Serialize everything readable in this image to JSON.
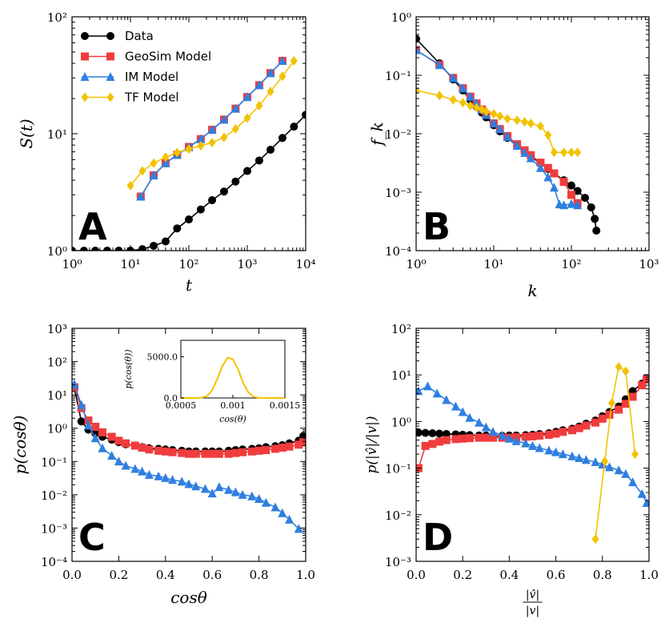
{
  "colors": {
    "data": "#000000",
    "geosim": "#f03c3c",
    "im": "#2f7fe0",
    "tf": "#f2c200"
  },
  "chart_data": [
    {
      "id": "A",
      "type": "line",
      "panel_label": "A",
      "xscale": "log",
      "yscale": "log",
      "xlim": [
        1,
        10000
      ],
      "ylim": [
        1,
        100
      ],
      "xlabel": "t",
      "ylabel": "S(t)",
      "xticks": [
        1,
        10,
        100,
        1000,
        10000
      ],
      "xtick_labels": [
        "10⁰",
        "10¹",
        "10²",
        "10³",
        "10⁴"
      ],
      "yticks": [
        1,
        10,
        100
      ],
      "ytick_labels": [
        "10⁰",
        "10¹",
        "10²"
      ],
      "legend": {
        "position": "upper-left",
        "entries": [
          "Data",
          "GeoSim Model",
          "IM Model",
          "TF Model"
        ]
      },
      "series": [
        {
          "name": "Data",
          "color": "#000000",
          "marker": "circle",
          "x": [
            1,
            1.6,
            2.5,
            4,
            6.3,
            10,
            16,
            25,
            40,
            63,
            100,
            160,
            250,
            400,
            630,
            1000,
            1600,
            2500,
            4000,
            6300,
            10000
          ],
          "y": [
            1,
            1,
            1,
            1,
            1,
            1,
            1.03,
            1.1,
            1.2,
            1.55,
            1.85,
            2.25,
            2.7,
            3.2,
            3.9,
            4.8,
            5.9,
            7.3,
            9.2,
            11.5,
            14.5
          ]
        },
        {
          "name": "GeoSim Model",
          "color": "#f03c3c",
          "marker": "square",
          "x": [
            15,
            25,
            40,
            63,
            100,
            160,
            250,
            400,
            630,
            1000,
            1600,
            2500,
            4000
          ],
          "y": [
            2.9,
            4.4,
            5.6,
            6.6,
            7.7,
            9.0,
            10.8,
            13.2,
            16.4,
            20.6,
            26,
            33,
            42
          ]
        },
        {
          "name": "IM Model",
          "color": "#2f7fe0",
          "marker": "triangle",
          "x": [
            15,
            25,
            40,
            63,
            100,
            160,
            250,
            400,
            630,
            1000,
            1600,
            2500,
            4000
          ],
          "y": [
            2.9,
            4.4,
            5.6,
            6.6,
            7.7,
            9.0,
            10.8,
            13.2,
            16.4,
            20.6,
            26,
            33,
            42
          ]
        },
        {
          "name": "TF Model",
          "color": "#f2c200",
          "marker": "diamond",
          "x": [
            10,
            16,
            25,
            40,
            63,
            100,
            160,
            250,
            400,
            630,
            1000,
            1600,
            2500,
            4000,
            6300
          ],
          "y": [
            3.6,
            4.8,
            5.6,
            6.3,
            6.9,
            7.4,
            7.9,
            8.4,
            9.3,
            11.0,
            13.6,
            17.4,
            23,
            31,
            42
          ]
        }
      ]
    },
    {
      "id": "B",
      "type": "line",
      "panel_label": "B",
      "xscale": "log",
      "yscale": "log",
      "xlim": [
        1,
        1000
      ],
      "ylim": [
        0.0001,
        1
      ],
      "xlabel": "k",
      "ylabel": "f_k",
      "xticks": [
        1,
        10,
        100,
        1000
      ],
      "xtick_labels": [
        "10⁰",
        "10¹",
        "10²",
        "10³"
      ],
      "yticks": [
        0.0001,
        0.001,
        0.01,
        0.1,
        1
      ],
      "ytick_labels": [
        "10⁻⁴",
        "10⁻³",
        "10⁻²",
        "10⁻¹",
        "10⁰"
      ],
      "series": [
        {
          "name": "Data",
          "color": "#000000",
          "marker": "circle",
          "x": [
            1,
            2,
            3,
            4,
            5,
            6,
            7,
            8,
            10,
            12,
            15,
            20,
            25,
            30,
            40,
            50,
            60,
            80,
            100,
            120,
            150,
            180,
            200,
            210
          ],
          "y": [
            0.42,
            0.16,
            0.085,
            0.055,
            0.038,
            0.029,
            0.023,
            0.019,
            0.014,
            0.011,
            0.0085,
            0.0062,
            0.005,
            0.0041,
            0.0031,
            0.0025,
            0.0021,
            0.0016,
            0.0013,
            0.00105,
            0.0008,
            0.00055,
            0.00035,
            0.00022
          ]
        },
        {
          "name": "GeoSim Model",
          "color": "#f03c3c",
          "marker": "square",
          "x": [
            1,
            2,
            3,
            4,
            5,
            6,
            7,
            8,
            10,
            12,
            15,
            20,
            25,
            30,
            40,
            50,
            60,
            80,
            100,
            120
          ],
          "y": [
            0.27,
            0.15,
            0.09,
            0.06,
            0.043,
            0.033,
            0.026,
            0.021,
            0.015,
            0.012,
            0.0091,
            0.0066,
            0.0052,
            0.0043,
            0.0032,
            0.0026,
            0.0021,
            0.0015,
            0.0009,
            0.00065
          ]
        },
        {
          "name": "IM Model",
          "color": "#2f7fe0",
          "marker": "triangle",
          "x": [
            1,
            2,
            3,
            4,
            5,
            6,
            7,
            8,
            10,
            12,
            15,
            20,
            25,
            30,
            40,
            50,
            60,
            70,
            80,
            100,
            120
          ],
          "y": [
            0.27,
            0.15,
            0.09,
            0.06,
            0.043,
            0.033,
            0.026,
            0.021,
            0.015,
            0.012,
            0.0088,
            0.0062,
            0.0047,
            0.0038,
            0.0026,
            0.0018,
            0.0012,
            0.00062,
            0.0006,
            0.00063,
            0.0006
          ]
        },
        {
          "name": "TF Model",
          "color": "#f2c200",
          "marker": "diamond",
          "x": [
            1,
            2,
            3,
            4,
            5,
            6,
            7,
            8,
            10,
            12,
            15,
            20,
            25,
            30,
            40,
            50,
            60,
            80,
            100,
            120
          ],
          "y": [
            0.055,
            0.045,
            0.038,
            0.034,
            0.03,
            0.028,
            0.026,
            0.024,
            0.022,
            0.02,
            0.018,
            0.017,
            0.016,
            0.015,
            0.0135,
            0.0095,
            0.0048,
            0.0048,
            0.0048,
            0.0048
          ]
        }
      ]
    },
    {
      "id": "C",
      "type": "line",
      "panel_label": "C",
      "xscale": "linear",
      "yscale": "log",
      "xlim": [
        0,
        1
      ],
      "ylim": [
        0.0001,
        1000
      ],
      "xlabel": "cosθ",
      "ylabel": "p(cosθ)",
      "xticks": [
        0,
        0.2,
        0.4,
        0.6,
        0.8,
        1.0
      ],
      "xtick_labels": [
        "0.0",
        "0.2",
        "0.4",
        "0.6",
        "0.8",
        "1.0"
      ],
      "yticks": [
        0.0001,
        0.001,
        0.01,
        0.1,
        1,
        10,
        100,
        1000
      ],
      "ytick_labels": [
        "10⁻⁴",
        "10⁻³",
        "10⁻²",
        "10⁻¹",
        "10⁰",
        "10¹",
        "10²",
        "10³"
      ],
      "series": [
        {
          "name": "Data",
          "color": "#000000",
          "marker": "circle",
          "x": [
            0.01,
            0.04,
            0.07,
            0.1,
            0.13,
            0.17,
            0.2,
            0.23,
            0.27,
            0.3,
            0.33,
            0.37,
            0.4,
            0.43,
            0.47,
            0.5,
            0.53,
            0.57,
            0.6,
            0.63,
            0.67,
            0.7,
            0.73,
            0.77,
            0.8,
            0.83,
            0.87,
            0.9,
            0.93,
            0.97,
            0.99
          ],
          "y": [
            16,
            1.6,
            0.9,
            0.7,
            0.55,
            0.45,
            0.38,
            0.33,
            0.3,
            0.27,
            0.25,
            0.24,
            0.23,
            0.22,
            0.21,
            0.2,
            0.2,
            0.2,
            0.2,
            0.2,
            0.21,
            0.22,
            0.23,
            0.24,
            0.25,
            0.27,
            0.29,
            0.31,
            0.35,
            0.42,
            0.58
          ]
        },
        {
          "name": "GeoSim Model",
          "color": "#f03c3c",
          "marker": "square",
          "x": [
            0.01,
            0.04,
            0.07,
            0.1,
            0.13,
            0.17,
            0.2,
            0.23,
            0.27,
            0.3,
            0.33,
            0.37,
            0.4,
            0.43,
            0.47,
            0.5,
            0.53,
            0.57,
            0.6,
            0.63,
            0.67,
            0.7,
            0.73,
            0.77,
            0.8,
            0.83,
            0.87,
            0.9,
            0.93,
            0.97,
            0.99
          ],
          "y": [
            17,
            4,
            1.7,
            1.1,
            0.75,
            0.55,
            0.42,
            0.35,
            0.3,
            0.26,
            0.23,
            0.21,
            0.2,
            0.19,
            0.18,
            0.17,
            0.17,
            0.17,
            0.17,
            0.17,
            0.17,
            0.18,
            0.19,
            0.2,
            0.21,
            0.22,
            0.24,
            0.26,
            0.28,
            0.32,
            0.38
          ]
        },
        {
          "name": "IM Model",
          "color": "#2f7fe0",
          "marker": "triangle",
          "x": [
            0.01,
            0.04,
            0.07,
            0.1,
            0.13,
            0.17,
            0.2,
            0.23,
            0.27,
            0.3,
            0.33,
            0.37,
            0.4,
            0.43,
            0.47,
            0.5,
            0.53,
            0.57,
            0.6,
            0.63,
            0.67,
            0.7,
            0.73,
            0.77,
            0.8,
            0.83,
            0.87,
            0.9,
            0.93,
            0.97
          ],
          "y": [
            21,
            5,
            1.2,
            0.5,
            0.25,
            0.15,
            0.1,
            0.075,
            0.06,
            0.05,
            0.04,
            0.036,
            0.032,
            0.028,
            0.025,
            0.021,
            0.018,
            0.015,
            0.011,
            0.017,
            0.014,
            0.012,
            0.01,
            0.009,
            0.0075,
            0.0058,
            0.0042,
            0.0028,
            0.0018,
            0.00095
          ]
        }
      ],
      "inset": {
        "type": "line",
        "xlim": [
          0.0005,
          0.0015
        ],
        "ylim": [
          0,
          7000
        ],
        "xticks": [
          0.0005,
          0.001,
          0.0015
        ],
        "xtick_labels": [
          "0.0005",
          "0.001",
          "0.0015"
        ],
        "yticks": [
          0,
          5000
        ],
        "ytick_labels": [
          "0.0",
          "5000.0"
        ],
        "xlabel": "cos(θ)",
        "ylabel": "p(cos(θ))",
        "series": [
          {
            "name": "TF Model",
            "color": "#f2c200",
            "x": [
              0.0005,
              0.00055,
              0.0006,
              0.00065,
              0.0007,
              0.00075,
              0.0008,
              0.00085,
              0.0009,
              0.00095,
              0.001,
              0.00105,
              0.0011,
              0.00115,
              0.0012,
              0.00125,
              0.0013,
              0.00135,
              0.0014,
              0.00145,
              0.0015
            ],
            "y": [
              0,
              0,
              0,
              5,
              40,
              230,
              900,
              2300,
              3900,
              4900,
              4700,
              3500,
              1800,
              650,
              160,
              25,
              3,
              0,
              0,
              0,
              0
            ]
          }
        ]
      }
    },
    {
      "id": "D",
      "type": "line",
      "panel_label": "D",
      "xscale": "linear",
      "yscale": "log",
      "xlim": [
        0,
        1
      ],
      "ylim": [
        0.001,
        100
      ],
      "xlabel": "|v̂|/|v|",
      "ylabel": "p(|v̂|/|v|)",
      "xticks": [
        0,
        0.2,
        0.4,
        0.6,
        0.8,
        1.0
      ],
      "xtick_labels": [
        "0.0",
        "0.2",
        "0.4",
        "0.6",
        "0.8",
        "1.0"
      ],
      "yticks": [
        0.001,
        0.01,
        0.1,
        1,
        10,
        100
      ],
      "ytick_labels": [
        "10⁻³",
        "10⁻²",
        "10⁻¹",
        "10⁰",
        "10¹",
        "10²"
      ],
      "series": [
        {
          "name": "Data",
          "color": "#000000",
          "marker": "circle",
          "x": [
            0.01,
            0.04,
            0.07,
            0.1,
            0.13,
            0.17,
            0.2,
            0.23,
            0.27,
            0.3,
            0.33,
            0.37,
            0.4,
            0.43,
            0.47,
            0.5,
            0.53,
            0.57,
            0.6,
            0.63,
            0.67,
            0.7,
            0.73,
            0.77,
            0.8,
            0.83,
            0.87,
            0.9,
            0.93,
            0.97,
            0.99
          ],
          "y": [
            0.58,
            0.57,
            0.56,
            0.55,
            0.54,
            0.53,
            0.52,
            0.51,
            0.5,
            0.5,
            0.49,
            0.49,
            0.5,
            0.5,
            0.51,
            0.52,
            0.54,
            0.56,
            0.6,
            0.65,
            0.7,
            0.78,
            0.9,
            1.05,
            1.3,
            1.6,
            2.1,
            3.0,
            4.5,
            6.5,
            8.5
          ]
        },
        {
          "name": "GeoSim Model",
          "color": "#f03c3c",
          "marker": "square",
          "x": [
            0.01,
            0.04,
            0.07,
            0.1,
            0.13,
            0.17,
            0.2,
            0.23,
            0.27,
            0.3,
            0.33,
            0.37,
            0.4,
            0.43,
            0.47,
            0.5,
            0.53,
            0.57,
            0.6,
            0.63,
            0.67,
            0.7,
            0.73,
            0.77,
            0.8,
            0.83,
            0.87,
            0.9,
            0.93,
            0.97,
            0.99
          ],
          "y": [
            0.1,
            0.3,
            0.33,
            0.37,
            0.4,
            0.42,
            0.43,
            0.44,
            0.45,
            0.45,
            0.45,
            0.45,
            0.45,
            0.46,
            0.47,
            0.48,
            0.5,
            0.52,
            0.55,
            0.6,
            0.65,
            0.72,
            0.82,
            0.95,
            1.15,
            1.4,
            1.8,
            2.4,
            3.4,
            6.0,
            8.0
          ]
        },
        {
          "name": "IM Model",
          "color": "#2f7fe0",
          "marker": "triangle",
          "x": [
            0.01,
            0.05,
            0.09,
            0.13,
            0.17,
            0.2,
            0.23,
            0.27,
            0.3,
            0.33,
            0.37,
            0.4,
            0.43,
            0.47,
            0.5,
            0.53,
            0.57,
            0.6,
            0.63,
            0.67,
            0.7,
            0.73,
            0.77,
            0.8,
            0.83,
            0.87,
            0.9,
            0.93,
            0.97,
            0.99
          ],
          "y": [
            4.5,
            5.7,
            4.0,
            2.9,
            2.1,
            1.6,
            1.2,
            0.95,
            0.75,
            0.6,
            0.5,
            0.43,
            0.38,
            0.34,
            0.3,
            0.27,
            0.24,
            0.22,
            0.2,
            0.18,
            0.165,
            0.15,
            0.135,
            0.12,
            0.105,
            0.09,
            0.075,
            0.05,
            0.028,
            0.018
          ]
        },
        {
          "name": "TF Model",
          "color": "#f2c200",
          "marker": "diamond",
          "x": [
            0.77,
            0.81,
            0.84,
            0.87,
            0.9,
            0.94
          ],
          "y": [
            0.003,
            0.14,
            2.5,
            15,
            12,
            0.2
          ]
        }
      ]
    }
  ]
}
